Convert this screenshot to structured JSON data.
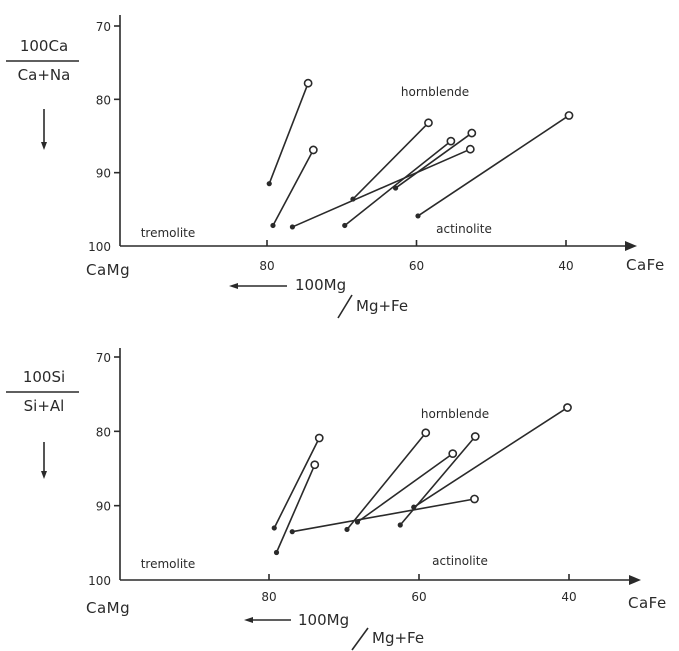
{
  "chart_data": [
    {
      "type": "scatter",
      "subtype": "tie-lines",
      "ylabel_numerator": "100Ca",
      "ylabel_denominator": "Ca+Na",
      "xlabel_numerator": "100Mg",
      "xlabel_denominator": "Mg+Fe",
      "x_left_label": "CaMg",
      "x_right_label": "CaFe",
      "xticks": [
        80,
        60,
        40
      ],
      "yticks": [
        70,
        80,
        90,
        100
      ],
      "xlim": [
        100,
        30
      ],
      "ylim": [
        68,
        100
      ],
      "y_inverted": true,
      "regions": [
        "tremolite",
        "hornblende",
        "actinolite"
      ],
      "segments": [
        {
          "start": [
            79.7,
            91.5
          ],
          "end": [
            74.5,
            77.8
          ]
        },
        {
          "start": [
            79.2,
            97.2
          ],
          "end": [
            73.8,
            86.9
          ]
        },
        {
          "start": [
            76.6,
            97.4
          ],
          "end": [
            52.8,
            86.8
          ]
        },
        {
          "start": [
            68.5,
            93.6
          ],
          "end": [
            58.4,
            83.2
          ]
        },
        {
          "start": [
            69.6,
            97.2
          ],
          "end": [
            55.4,
            85.7
          ]
        },
        {
          "start": [
            62.8,
            92.1
          ],
          "end": [
            52.6,
            84.6
          ]
        },
        {
          "start": [
            59.8,
            95.9
          ],
          "end": [
            39.6,
            82.2
          ]
        }
      ]
    },
    {
      "type": "scatter",
      "subtype": "tie-lines",
      "ylabel_numerator": "100Si",
      "ylabel_denominator": "Si+Al",
      "xlabel_numerator": "100Mg",
      "xlabel_denominator": "Mg+Fe",
      "x_left_label": "CaMg",
      "x_right_label": "CaFe",
      "xticks": [
        80,
        60,
        40
      ],
      "yticks": [
        70,
        80,
        90,
        100
      ],
      "xlim": [
        100,
        30
      ],
      "ylim": [
        68,
        100
      ],
      "y_inverted": true,
      "regions": [
        "tremolite",
        "hornblende",
        "actinolite"
      ],
      "segments": [
        {
          "start": [
            79.3,
            93.0
          ],
          "end": [
            73.3,
            80.9
          ]
        },
        {
          "start": [
            79.0,
            96.3
          ],
          "end": [
            73.9,
            84.5
          ]
        },
        {
          "start": [
            76.9,
            93.5
          ],
          "end": [
            52.6,
            89.1
          ]
        },
        {
          "start": [
            69.6,
            93.2
          ],
          "end": [
            59.1,
            80.2
          ]
        },
        {
          "start": [
            68.2,
            92.2
          ],
          "end": [
            55.5,
            83.0
          ]
        },
        {
          "start": [
            62.5,
            92.6
          ],
          "end": [
            52.5,
            80.7
          ]
        },
        {
          "start": [
            60.7,
            90.2
          ],
          "end": [
            40.2,
            76.8
          ]
        }
      ]
    }
  ]
}
